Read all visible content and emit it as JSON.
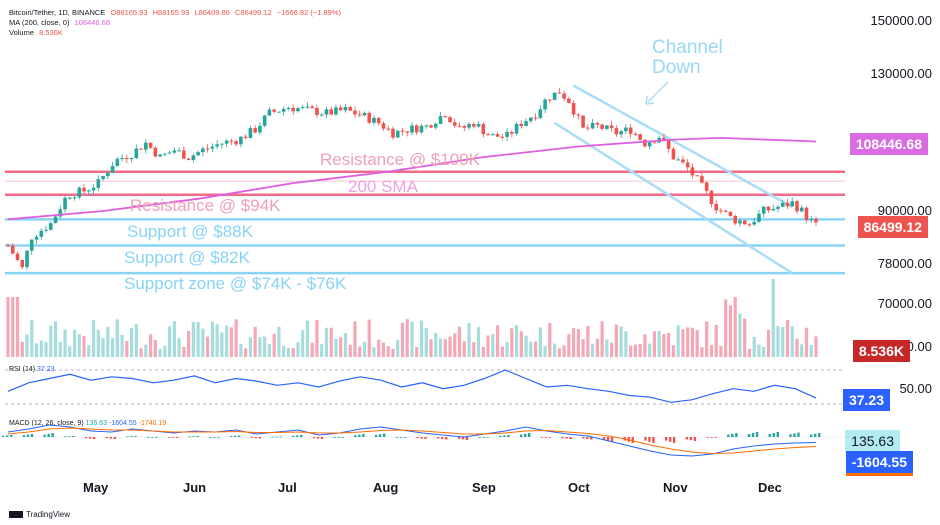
{
  "header": {
    "line1": {
      "symbol": "Bitcoin/Tether, 1D, BINANCE",
      "o": "O88165.93",
      "h": "H88165.93",
      "l": "L86409.86",
      "c": "C86499.12",
      "chg": "−1666.82 (−1.89%)"
    },
    "line2": {
      "label": "MA (200, close, 0)",
      "value": "108446.68"
    },
    "line3": {
      "label": "Volume",
      "value": "8.536K"
    }
  },
  "price_axis": [
    "150000.00",
    "130000.00",
    "90000.00",
    "78000.00",
    "70000.00",
    "60000.00"
  ],
  "badges": {
    "ma": "108446.68",
    "price": "86499.12",
    "volume": "8.536K",
    "rsi": "37.23",
    "macd_hist": "135.63",
    "macd_line": "-1604.55"
  },
  "rsi_axis": "50.00",
  "months": [
    "May",
    "Jun",
    "Jul",
    "Aug",
    "Sep",
    "Oct",
    "Nov",
    "Dec"
  ],
  "annotations": {
    "channel_line1": "Channel",
    "channel_line2": "Down",
    "res100": "Resistance @ $100K",
    "sma": "200 SMA",
    "res94": "Resistance @ $94K",
    "sup88": "Support @ $88K",
    "sup82": "Support @ $82K",
    "supzone": "Support zone @ $74K - $76K"
  },
  "panes": {
    "rsi_title": "RSI (14)",
    "rsi_value": "37.23",
    "macd_title": "MACD (12, 26, close, 9)",
    "macd_v1": "135.63",
    "macd_v2": "-1604.55",
    "macd_v3": "-1740.19"
  },
  "footer": {
    "logo": "TradingView"
  },
  "colors": {
    "up": "#26a69a",
    "down": "#ef5350",
    "ma": "#e05fe0",
    "support": "#87d4f5",
    "resistance": "#f06a8a",
    "rsi": "#2962ff",
    "macd": "#2962ff",
    "signal": "#ff6d00"
  },
  "chart_data": {
    "type": "candlestick",
    "symbol": "Bitcoin/Tether",
    "interval": "1D",
    "y_scale": "log",
    "x_months": [
      "May",
      "Jun",
      "Jul",
      "Aug",
      "Sep",
      "Oct",
      "Nov",
      "Dec"
    ],
    "y_ticks": [
      150000,
      130000,
      90000,
      78000,
      70000,
      60000
    ],
    "price_path": [
      [
        0,
        82000
      ],
      [
        6,
        77000
      ],
      [
        10,
        84000
      ],
      [
        18,
        87000
      ],
      [
        25,
        94000
      ],
      [
        32,
        95000
      ],
      [
        38,
        97000
      ],
      [
        45,
        103000
      ],
      [
        52,
        105000
      ],
      [
        58,
        108000
      ],
      [
        64,
        104000
      ],
      [
        70,
        106000
      ],
      [
        76,
        104000
      ],
      [
        82,
        106000
      ],
      [
        90,
        108000
      ],
      [
        97,
        109000
      ],
      [
        104,
        112000
      ],
      [
        110,
        117000
      ],
      [
        118,
        119000
      ],
      [
        126,
        118000
      ],
      [
        134,
        117000
      ],
      [
        142,
        118000
      ],
      [
        150,
        116000
      ],
      [
        156,
        114000
      ],
      [
        162,
        111000
      ],
      [
        168,
        112000
      ],
      [
        176,
        113000
      ],
      [
        184,
        117000
      ],
      [
        190,
        112000
      ],
      [
        196,
        114000
      ],
      [
        203,
        110000
      ],
      [
        210,
        110000
      ],
      [
        216,
        114000
      ],
      [
        222,
        117000
      ],
      [
        227,
        122000
      ],
      [
        232,
        124000
      ],
      [
        236,
        121000
      ],
      [
        242,
        112000
      ],
      [
        248,
        113000
      ],
      [
        256,
        111000
      ],
      [
        262,
        112000
      ],
      [
        268,
        108000
      ],
      [
        274,
        110000
      ],
      [
        280,
        104000
      ],
      [
        286,
        101000
      ],
      [
        292,
        96000
      ],
      [
        298,
        91000
      ],
      [
        305,
        88000
      ],
      [
        312,
        87000
      ],
      [
        318,
        90000
      ],
      [
        324,
        91000
      ],
      [
        330,
        92000
      ],
      [
        334,
        90000
      ],
      [
        337,
        88000
      ],
      [
        340,
        86499
      ]
    ],
    "ma200": [
      [
        0,
        88000
      ],
      [
        40,
        90000
      ],
      [
        80,
        93000
      ],
      [
        120,
        97000
      ],
      [
        160,
        100000
      ],
      [
        200,
        104000
      ],
      [
        240,
        107000
      ],
      [
        280,
        109000
      ],
      [
        300,
        109500
      ],
      [
        340,
        108447
      ]
    ],
    "levels": [
      {
        "label": "Resistance @ $100K",
        "value": 100000
      },
      {
        "label": "Resistance @ $94K",
        "value": 94000
      },
      {
        "label": "Support @ $88K",
        "value": 88000
      },
      {
        "label": "Support @ $82K",
        "value": 82000
      },
      {
        "label": "Support zone @ $74K - $76K",
        "value": [
          74000,
          76000
        ]
      }
    ],
    "channel": {
      "label": "Channel Down",
      "upper": [
        [
          238,
          126000
        ],
        [
          330,
          91000
        ]
      ],
      "lower": [
        [
          230,
          114000
        ],
        [
          330,
          76000
        ]
      ]
    },
    "volume_last": 8536,
    "rsi": {
      "period": 14,
      "last": 37.23,
      "values": [
        45,
        55,
        60,
        65,
        58,
        62,
        60,
        55,
        58,
        63,
        55,
        60,
        57,
        52,
        55,
        50,
        57,
        62,
        58,
        50,
        55,
        48,
        52,
        60,
        70,
        60,
        50,
        52,
        48,
        45,
        40,
        38,
        32,
        35,
        42,
        48,
        45,
        52,
        48,
        37
      ]
    },
    "macd": {
      "params": [
        12,
        26,
        9
      ],
      "macd_last": -1604.55,
      "signal_last": -1740.19,
      "histogram_last": 135.63,
      "macd": [
        0.5,
        0.8,
        1.2,
        1.0,
        0.6,
        0.5,
        0.8,
        0.6,
        0.4,
        0.6,
        0.5,
        0.7,
        0.3,
        0.5,
        0.7,
        0.2,
        0.4,
        0.8,
        1.0,
        0.7,
        0.4,
        0.2,
        0.0,
        0.3,
        0.6,
        1.0,
        0.6,
        0.3,
        0.1,
        -0.4,
        -0.9,
        -1.4,
        -1.8,
        -1.9,
        -1.7,
        -1.2,
        -0.9,
        -0.7,
        -0.6,
        -0.55
      ],
      "signal": [
        0.3,
        0.5,
        0.8,
        0.9,
        0.8,
        0.7,
        0.7,
        0.6,
        0.5,
        0.5,
        0.5,
        0.55,
        0.45,
        0.45,
        0.5,
        0.4,
        0.4,
        0.5,
        0.65,
        0.7,
        0.6,
        0.45,
        0.3,
        0.3,
        0.4,
        0.6,
        0.65,
        0.5,
        0.35,
        0.1,
        -0.3,
        -0.8,
        -1.2,
        -1.5,
        -1.65,
        -1.6,
        -1.4,
        -1.2,
        -1.05,
        -0.95
      ]
    }
  }
}
